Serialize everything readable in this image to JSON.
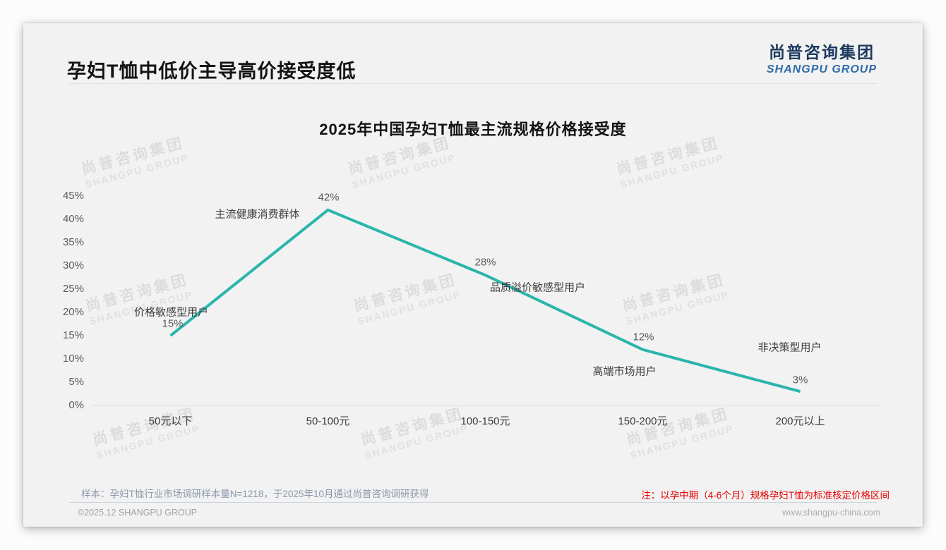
{
  "header": {
    "title": "孕妇T恤中低价主导高价接受度低",
    "logo_cn": "尚普咨询集团",
    "logo_en": "SHANGPU GROUP"
  },
  "watermark": {
    "cn": "尚普咨询集团",
    "en": "SHANGPU GROUP"
  },
  "chart_data": {
    "type": "line",
    "title": "2025年中国孕妇T恤最主流规格价格接受度",
    "categories": [
      "50元以下",
      "50-100元",
      "100-150元",
      "150-200元",
      "200元以上"
    ],
    "values": [
      15,
      42,
      28,
      12,
      3
    ],
    "data_labels": [
      "15%",
      "42%",
      "28%",
      "12%",
      "3%"
    ],
    "annotations": [
      "价格敏感型用户",
      "主流健康消费群体",
      "品质溢价敏感型用户",
      "高端市场用户",
      "非决策型用户"
    ],
    "y_ticks": [
      "45%",
      "40%",
      "35%",
      "30%",
      "25%",
      "20%",
      "15%",
      "10%",
      "5%",
      "0%"
    ],
    "ylim": [
      0,
      45
    ],
    "y_tick_step": 5,
    "xlabel": "",
    "ylabel": "",
    "line_color": "#2ab5ab",
    "axis_line_color": "#d9d9d9",
    "grid": false,
    "legend": "none"
  },
  "footer": {
    "sample_note": "样本：孕妇T恤行业市场调研样本量N=1218，于2025年10月通过尚普咨询调研获得",
    "red_note": "注：以孕中期（4-6个月）规格孕妇T恤为标准核定价格区间",
    "copyright": "©2025.12 SHANGPU GROUP",
    "website": "www.shangpu-china.com"
  }
}
